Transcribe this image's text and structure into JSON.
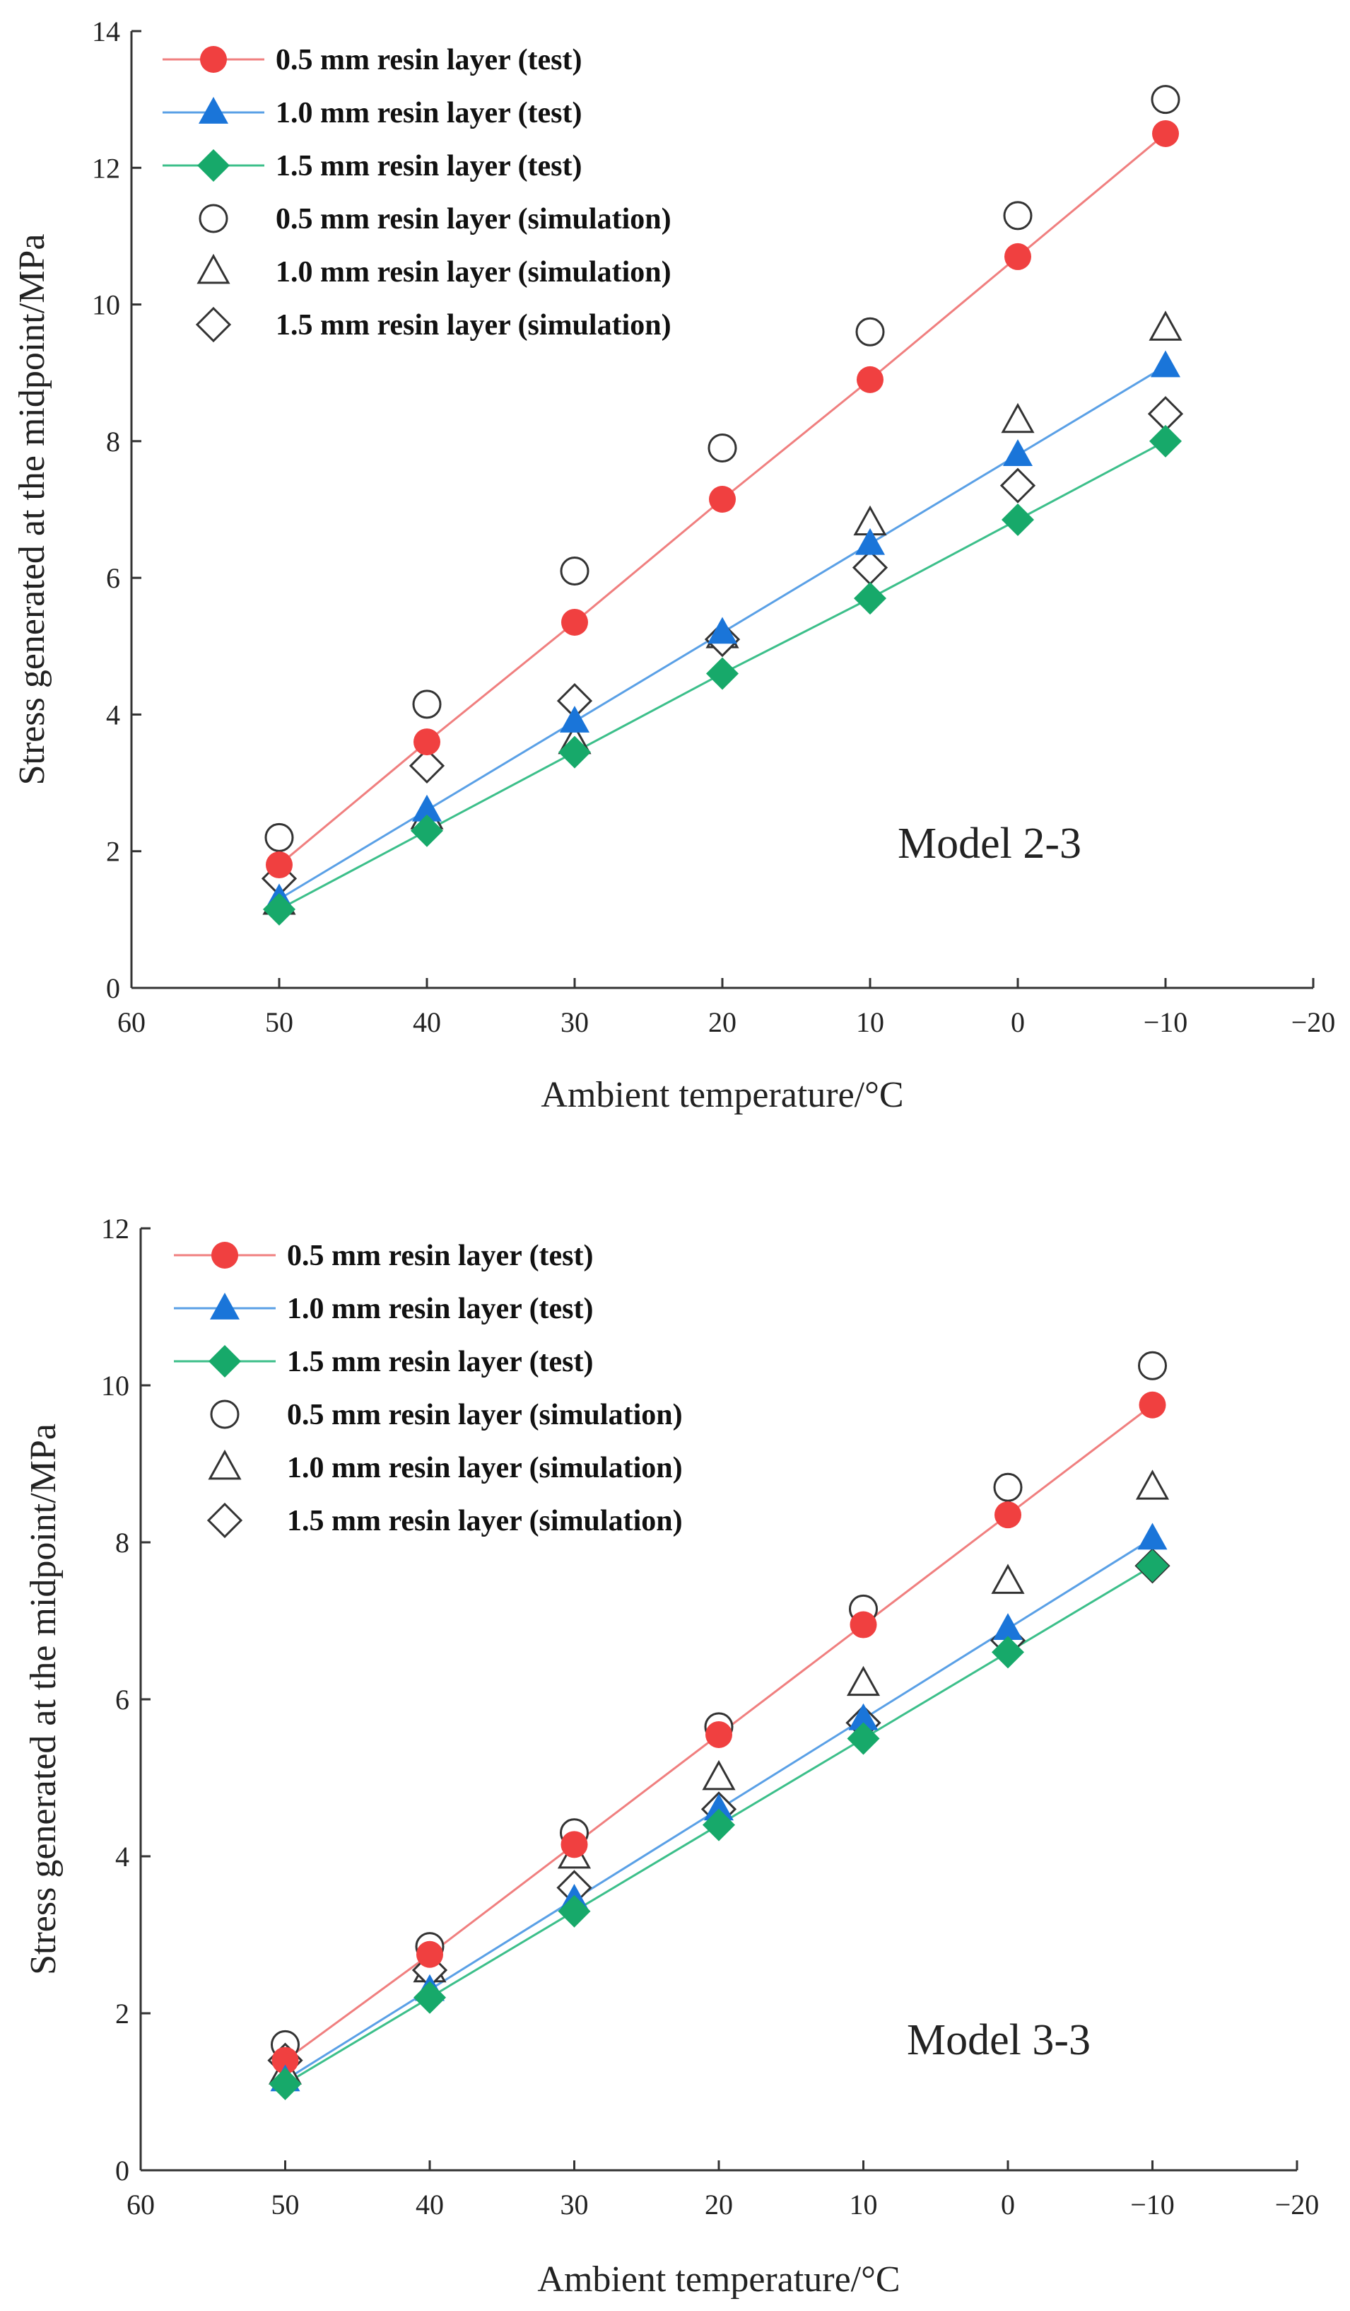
{
  "colors": {
    "t05": "#f04040",
    "t10": "#1a75d9",
    "t15": "#17a96a",
    "line05": "#f07f7f",
    "line10": "#5aa0e6",
    "line15": "#3cbf8a",
    "axis": "#333333"
  },
  "chart_data": [
    {
      "type": "scatter",
      "title": "",
      "annotation": "Model 2-3",
      "xlabel": "Ambient temperature/°C",
      "ylabel": "Stress generated at the midpoint/MPa",
      "xlim": [
        60,
        -20
      ],
      "ylim": [
        0,
        14
      ],
      "xticks": [
        60,
        50,
        40,
        30,
        20,
        10,
        0,
        -10,
        -20
      ],
      "xtick_labels": [
        "60",
        "50",
        "40",
        "30",
        "20",
        "10",
        "0",
        "−10",
        "−20"
      ],
      "yticks": [
        0,
        2,
        4,
        6,
        8,
        10,
        12,
        14
      ],
      "ytick_labels": [
        "0",
        "2",
        "4",
        "6",
        "8",
        "10",
        "12",
        "14"
      ],
      "x": [
        50,
        40,
        30,
        20,
        10,
        0,
        -10
      ],
      "series": [
        {
          "name": "0.5 mm resin layer (test)",
          "marker": "circle-filled",
          "line": true,
          "color_key": "t05",
          "line_key": "line05",
          "values": [
            1.8,
            3.6,
            5.35,
            7.15,
            8.9,
            10.7,
            12.5
          ]
        },
        {
          "name": "1.0 mm resin layer (test)",
          "marker": "triangle-filled",
          "line": true,
          "color_key": "t10",
          "line_key": "line10",
          "values": [
            1.3,
            2.6,
            3.9,
            5.2,
            6.5,
            7.8,
            9.1
          ]
        },
        {
          "name": "1.5 mm resin layer (test)",
          "marker": "diamond-filled",
          "line": true,
          "color_key": "t15",
          "line_key": "line15",
          "values": [
            1.15,
            2.3,
            3.45,
            4.6,
            5.7,
            6.85,
            8.0
          ]
        },
        {
          "name": "0.5 mm resin layer (simulation)",
          "marker": "circle-open",
          "line": false,
          "values": [
            2.2,
            4.15,
            6.1,
            7.9,
            9.6,
            11.3,
            13.0
          ]
        },
        {
          "name": "1.0 mm resin layer (simulation)",
          "marker": "triangle-open",
          "line": false,
          "values": [
            1.25,
            2.5,
            3.6,
            5.15,
            6.8,
            8.3,
            9.65
          ]
        },
        {
          "name": "1.5 mm resin layer (simulation)",
          "marker": "diamond-open",
          "line": false,
          "values": [
            1.6,
            3.25,
            4.2,
            5.1,
            6.15,
            7.35,
            8.4
          ]
        }
      ]
    },
    {
      "type": "scatter",
      "title": "",
      "annotation": "Model 3-3",
      "xlabel": "Ambient temperature/°C",
      "ylabel": "Stress generated at the midpoint/MPa",
      "xlim": [
        60,
        -20
      ],
      "ylim": [
        0,
        12
      ],
      "xticks": [
        60,
        50,
        40,
        30,
        20,
        10,
        0,
        -10,
        -20
      ],
      "xtick_labels": [
        "60",
        "50",
        "40",
        "30",
        "20",
        "10",
        "0",
        "−10",
        "−20"
      ],
      "yticks": [
        0,
        2,
        4,
        6,
        8,
        10,
        12
      ],
      "ytick_labels": [
        "0",
        "2",
        "4",
        "6",
        "8",
        "10",
        "12"
      ],
      "x": [
        50,
        40,
        30,
        20,
        10,
        0,
        -10
      ],
      "series": [
        {
          "name": "0.5 mm resin layer (test)",
          "marker": "circle-filled",
          "line": true,
          "color_key": "t05",
          "line_key": "line05",
          "values": [
            1.4,
            2.75,
            4.15,
            5.55,
            6.95,
            8.35,
            9.75
          ]
        },
        {
          "name": "1.0 mm resin layer (test)",
          "marker": "triangle-filled",
          "line": true,
          "color_key": "t10",
          "line_key": "line10",
          "values": [
            1.15,
            2.3,
            3.45,
            4.6,
            5.75,
            6.9,
            8.05
          ]
        },
        {
          "name": "1.5 mm resin layer (test)",
          "marker": "diamond-filled",
          "line": true,
          "color_key": "t15",
          "line_key": "line15",
          "values": [
            1.1,
            2.2,
            3.3,
            4.4,
            5.5,
            6.6,
            7.7
          ]
        },
        {
          "name": "0.5 mm resin layer (simulation)",
          "marker": "circle-open",
          "line": false,
          "values": [
            1.6,
            2.85,
            4.3,
            5.65,
            7.15,
            8.7,
            10.25
          ]
        },
        {
          "name": "1.0 mm resin layer (simulation)",
          "marker": "triangle-open",
          "line": false,
          "values": [
            1.25,
            2.55,
            4.0,
            5.0,
            6.2,
            7.5,
            8.7
          ]
        },
        {
          "name": "1.5 mm resin layer (simulation)",
          "marker": "diamond-open",
          "line": false,
          "values": [
            1.4,
            2.55,
            3.6,
            4.6,
            5.7,
            6.75,
            7.7
          ]
        }
      ]
    }
  ]
}
